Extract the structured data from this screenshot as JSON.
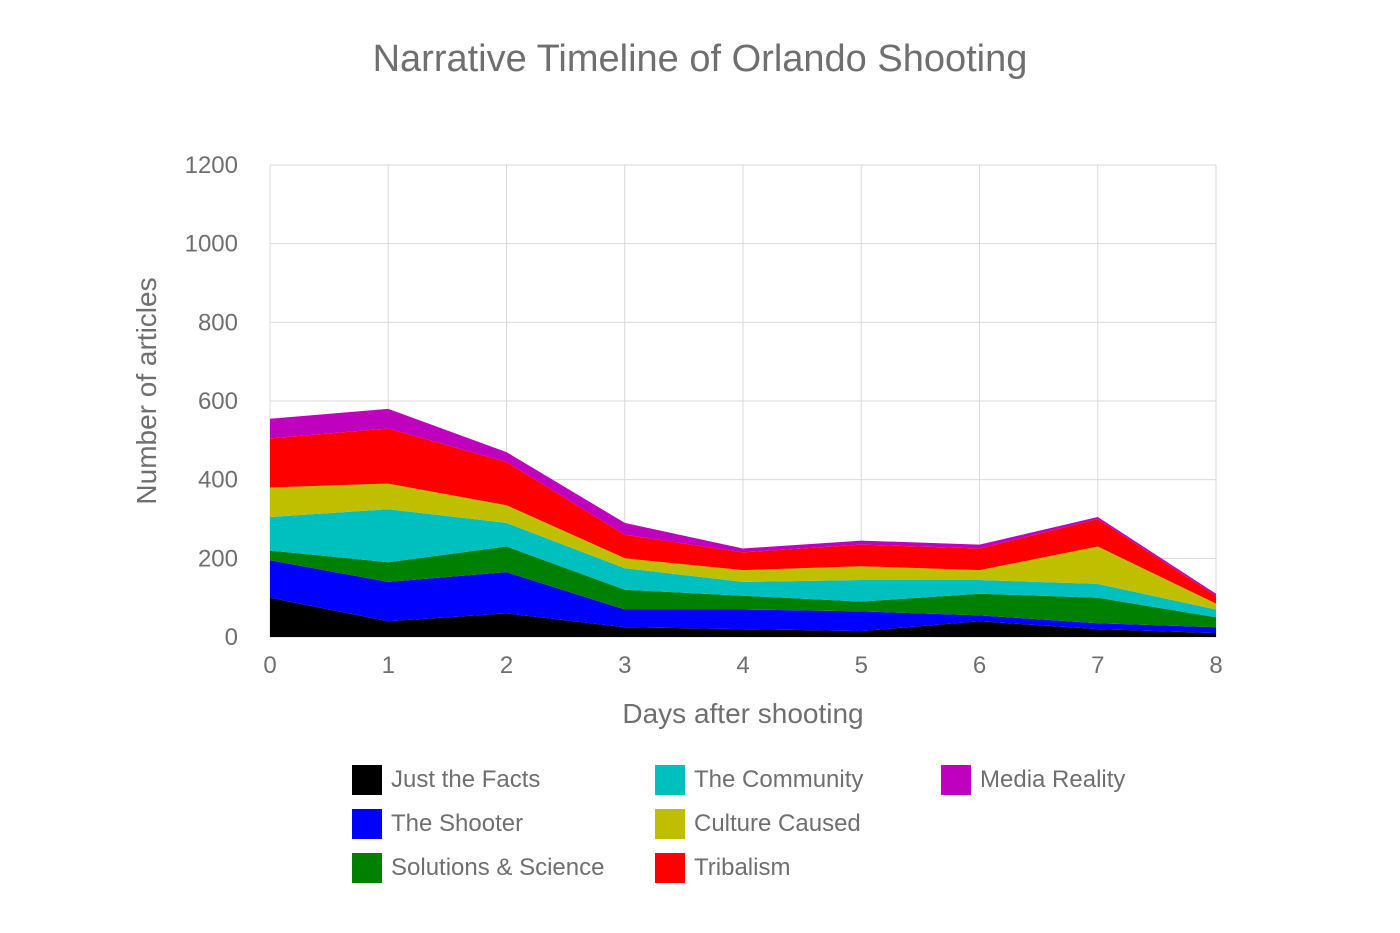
{
  "chart_data": {
    "type": "area",
    "stacked": true,
    "title": "Narrative Timeline of Orlando Shooting",
    "xlabel": "Days after shooting",
    "ylabel": "Number of articles",
    "x": [
      0,
      1,
      2,
      3,
      4,
      5,
      6,
      7,
      8
    ],
    "xlim": [
      0,
      8
    ],
    "ylim": [
      0,
      1200
    ],
    "y_ticks": [
      0,
      200,
      400,
      600,
      800,
      1000,
      1200
    ],
    "grid": true,
    "legend_position": "bottom",
    "series": [
      {
        "name": "Just the Facts",
        "color": "#000000",
        "values": [
          100,
          40,
          60,
          25,
          20,
          15,
          40,
          20,
          10
        ]
      },
      {
        "name": "The Shooter",
        "color": "#0000ff",
        "values": [
          95,
          100,
          105,
          45,
          50,
          50,
          15,
          15,
          15
        ]
      },
      {
        "name": "Solutions & Science",
        "color": "#008000",
        "values": [
          25,
          50,
          65,
          50,
          35,
          25,
          55,
          65,
          25
        ]
      },
      {
        "name": "The Community",
        "color": "#00bfbf",
        "values": [
          85,
          135,
          60,
          55,
          35,
          55,
          35,
          35,
          20
        ]
      },
      {
        "name": "Culture Caused",
        "color": "#bfbf00",
        "values": [
          75,
          65,
          45,
          25,
          30,
          35,
          25,
          95,
          15
        ]
      },
      {
        "name": "Tribalism",
        "color": "#ff0000",
        "values": [
          125,
          140,
          110,
          60,
          45,
          55,
          55,
          70,
          20
        ]
      },
      {
        "name": "Media Reality",
        "color": "#bf00bf",
        "values": [
          50,
          50,
          25,
          30,
          10,
          10,
          10,
          5,
          5
        ]
      }
    ]
  }
}
